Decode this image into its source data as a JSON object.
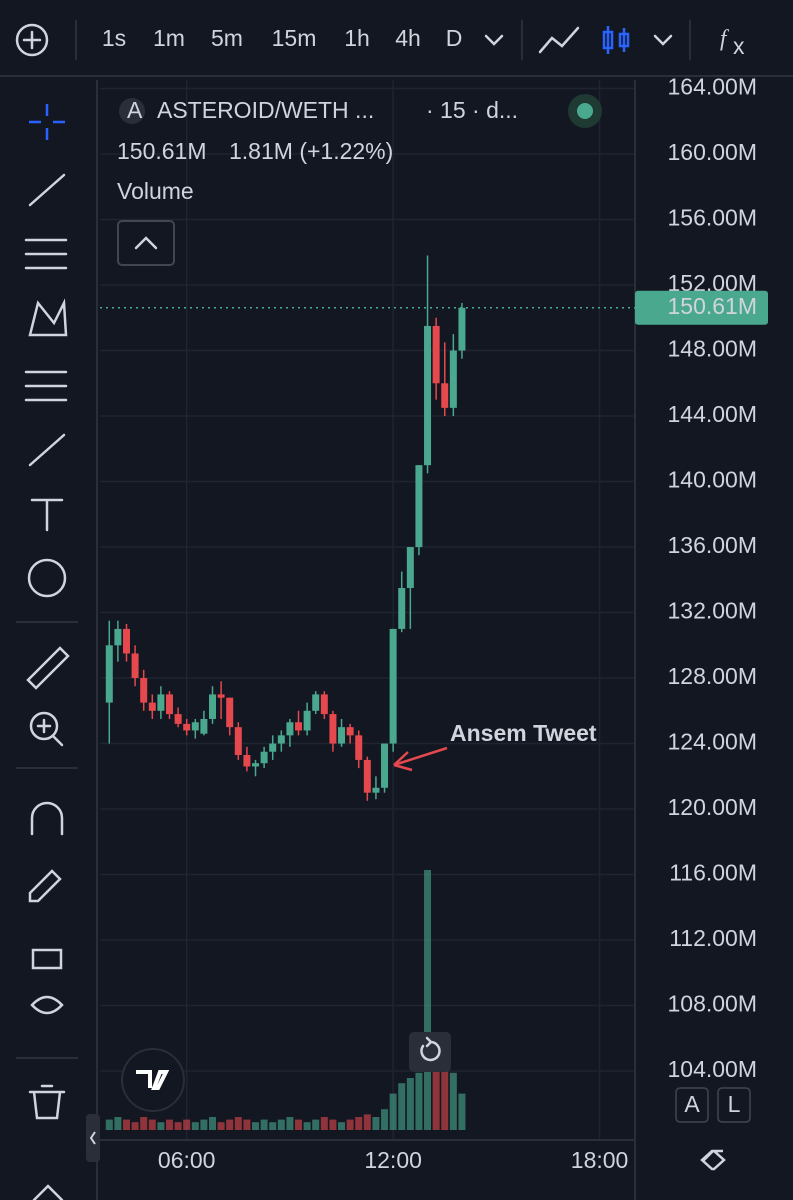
{
  "toolbar": {
    "intervals": [
      "1s",
      "1m",
      "5m",
      "15m",
      "1h",
      "4h",
      "D"
    ]
  },
  "legend": {
    "symbol": "ASTEROID/WETH ...",
    "interval": "· 15 · d...",
    "price": "150.61M",
    "change": "1.81M (+1.22%)",
    "indicator": "Volume"
  },
  "chart_data": {
    "type": "candlestick",
    "x": [
      3.75,
      4,
      4.25,
      4.5,
      4.75,
      5,
      5.25,
      5.5,
      5.75,
      6,
      6.25,
      6.5,
      6.75,
      7,
      7.25,
      7.5,
      7.75,
      8,
      8.25,
      8.5,
      8.75,
      9,
      9.25,
      9.5,
      9.75,
      10,
      10.25,
      10.5,
      10.75,
      11,
      11.25,
      11.5,
      11.75,
      12,
      12.25,
      12.5,
      12.75,
      13,
      13.25,
      13.5,
      13.75,
      14
    ],
    "open": [
      126.5,
      130,
      131,
      129.5,
      128,
      126.5,
      126,
      127,
      125.8,
      125.2,
      124.8,
      124.6,
      125.5,
      127,
      126.8,
      125,
      123.3,
      122.6,
      122.8,
      123.5,
      124,
      124.5,
      125.3,
      124.8,
      126,
      127,
      125.8,
      124,
      125,
      124.5,
      123,
      121,
      121.3,
      124,
      131,
      133.5,
      136,
      141,
      149.5,
      146,
      144.5,
      148
    ],
    "high": [
      131.5,
      131.5,
      131.3,
      130,
      128.5,
      127,
      127.5,
      127.2,
      126.2,
      125.5,
      125.5,
      126,
      127.5,
      127.8,
      126.8,
      125.3,
      123.8,
      123,
      123.8,
      124.5,
      124.8,
      125.5,
      126,
      126.5,
      127.2,
      127.2,
      126,
      125.5,
      125.2,
      124.8,
      123.2,
      122,
      124,
      131,
      134.5,
      136,
      141,
      153.8,
      150,
      148.5,
      149,
      150.9
    ],
    "low": [
      124,
      129,
      129,
      127.5,
      126,
      125.5,
      125.5,
      125.5,
      125,
      124.5,
      124.3,
      124.5,
      125.2,
      125.5,
      124.5,
      123,
      122.3,
      122,
      122.5,
      123,
      123.5,
      123.8,
      124.5,
      124.5,
      125.8,
      125.5,
      123.5,
      123.8,
      124,
      122.5,
      120.5,
      120.6,
      121,
      123.5,
      130.8,
      131,
      135.5,
      140.5,
      145,
      144,
      144,
      147.5
    ],
    "close": [
      130,
      131,
      129.5,
      128,
      126.5,
      126,
      127,
      125.8,
      125.2,
      124.8,
      125.3,
      125.5,
      127,
      126.8,
      125,
      123.3,
      122.6,
      122.8,
      123.5,
      124,
      124.5,
      125.3,
      124.8,
      126,
      127,
      125.8,
      124,
      125,
      124.5,
      123,
      121,
      121.3,
      124,
      131,
      133.5,
      136,
      141,
      149.5,
      146,
      144.5,
      148,
      150.61
    ],
    "volume": [
      4,
      5,
      4,
      3,
      5,
      4,
      3,
      4,
      3,
      4,
      3,
      4,
      5,
      3,
      4,
      5,
      4,
      3,
      4,
      3,
      4,
      5,
      4,
      3,
      4,
      5,
      4,
      3,
      4,
      5,
      6,
      5,
      8,
      14,
      18,
      20,
      22,
      100,
      26,
      24,
      22,
      14
    ],
    "volume_lim": [
      0,
      100
    ],
    "up_color": "#4aa88f",
    "down_color": "#e5484d",
    "xlim": [
      3.48,
      19.03
    ],
    "ylim": [
      99.79,
      164.52
    ],
    "xticks": [
      {
        "value": 6,
        "label": "06:00"
      },
      {
        "value": 12,
        "label": "12:00"
      },
      {
        "value": 18,
        "label": "18:00"
      }
    ],
    "yticks": [
      {
        "value": 164,
        "label": "164.00M"
      },
      {
        "value": 160,
        "label": "160.00M"
      },
      {
        "value": 156,
        "label": "156.00M"
      },
      {
        "value": 152,
        "label": "152.00M"
      },
      {
        "value": 148,
        "label": "148.00M"
      },
      {
        "value": 144,
        "label": "144.00M"
      },
      {
        "value": 140,
        "label": "140.00M"
      },
      {
        "value": 136,
        "label": "136.00M"
      },
      {
        "value": 132,
        "label": "132.00M"
      },
      {
        "value": 128,
        "label": "128.00M"
      },
      {
        "value": 124,
        "label": "124.00M"
      },
      {
        "value": 120,
        "label": "120.00M"
      },
      {
        "value": 116,
        "label": "116.00M"
      },
      {
        "value": 112,
        "label": "112.00M"
      },
      {
        "value": 108,
        "label": "108.00M"
      },
      {
        "value": 104,
        "label": "104.00M"
      }
    ],
    "last_price": {
      "value": 150.61,
      "label": "150.61M"
    },
    "annotation": "Ansem Tweet",
    "grid": true
  },
  "scale_buttons": [
    "A",
    "L"
  ]
}
